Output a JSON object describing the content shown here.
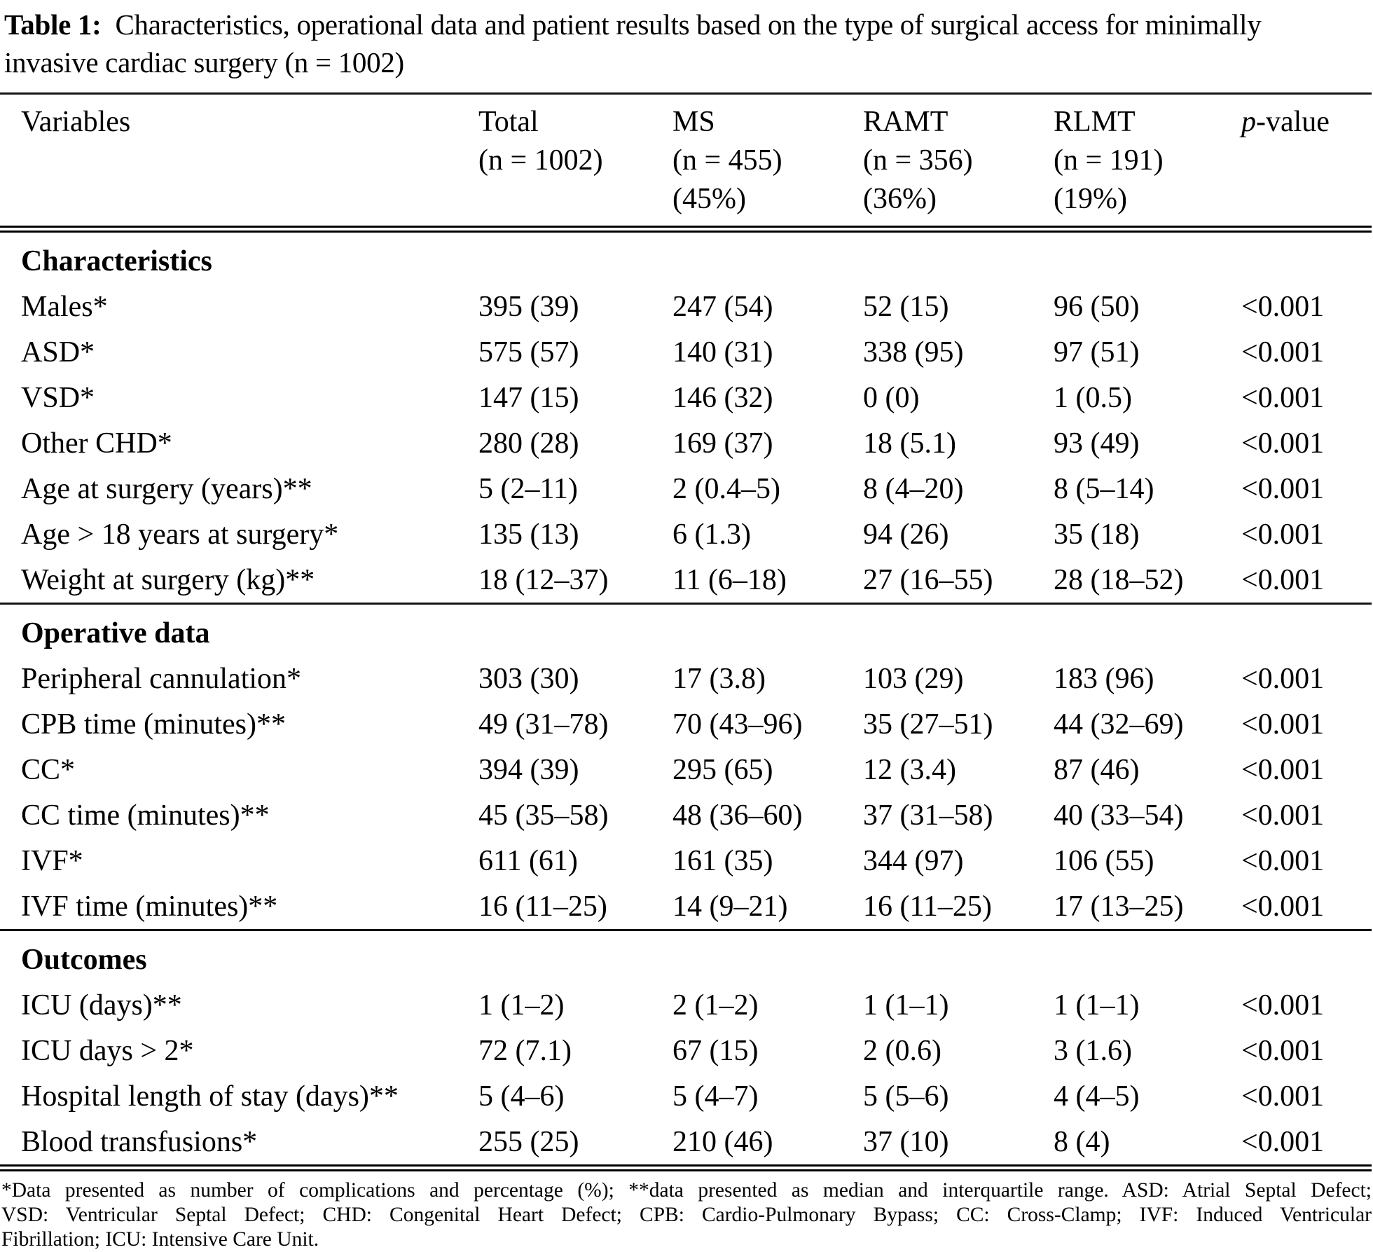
{
  "title": {
    "label": "Table 1:",
    "line1": "Characteristics, operational data and patient results based on the type of surgical access for minimally",
    "line2": "invasive cardiac surgery (n = 1002)"
  },
  "header": {
    "variables": "Variables",
    "groups": [
      {
        "lines": [
          "Total",
          "(n = 1002)",
          ""
        ]
      },
      {
        "lines": [
          "MS",
          "(n = 455)",
          "(45%)"
        ]
      },
      {
        "lines": [
          "RAMT",
          "(n = 356)",
          "(36%)"
        ]
      },
      {
        "lines": [
          "RLMT",
          "(n = 191)",
          "(19%)"
        ]
      }
    ],
    "pvalue": {
      "p": "p",
      "suffix": "-value"
    }
  },
  "sections": [
    {
      "name": "Characteristics",
      "rows": [
        {
          "label": "Males*",
          "values": [
            "395 (39)",
            "247 (54)",
            "52 (15)",
            "96 (50)",
            "<0.001"
          ]
        },
        {
          "label": "ASD*",
          "values": [
            "575 (57)",
            "140 (31)",
            "338 (95)",
            "97 (51)",
            "<0.001"
          ]
        },
        {
          "label": "VSD*",
          "values": [
            "147 (15)",
            "146 (32)",
            "0 (0)",
            "1 (0.5)",
            "<0.001"
          ]
        },
        {
          "label": "Other CHD*",
          "values": [
            "280 (28)",
            "169 (37)",
            "18 (5.1)",
            "93 (49)",
            "<0.001"
          ]
        },
        {
          "label": "Age at surgery (years)**",
          "values": [
            "5 (2–11)",
            "2 (0.4–5)",
            "8 (4–20)",
            "8 (5–14)",
            "<0.001"
          ]
        },
        {
          "label": "Age > 18 years at surgery*",
          "values": [
            "135 (13)",
            "6 (1.3)",
            "94 (26)",
            "35 (18)",
            "<0.001"
          ]
        },
        {
          "label": "Weight at surgery (kg)**",
          "values": [
            "18 (12–37)",
            "11 (6–18)",
            "27 (16–55)",
            "28 (18–52)",
            "<0.001"
          ]
        }
      ]
    },
    {
      "name": "Operative data",
      "rows": [
        {
          "label": "Peripheral cannulation*",
          "values": [
            "303 (30)",
            "17 (3.8)",
            "103 (29)",
            "183 (96)",
            "<0.001"
          ]
        },
        {
          "label": "CPB time (minutes)**",
          "values": [
            "49 (31–78)",
            "70 (43–96)",
            "35 (27–51)",
            "44 (32–69)",
            "<0.001"
          ]
        },
        {
          "label": "CC*",
          "values": [
            "394 (39)",
            "295 (65)",
            "12 (3.4)",
            "87 (46)",
            "<0.001"
          ]
        },
        {
          "label": "CC time (minutes)**",
          "values": [
            "45 (35–58)",
            "48 (36–60)",
            "37 (31–58)",
            "40 (33–54)",
            "<0.001"
          ]
        },
        {
          "label": "IVF*",
          "values": [
            "611 (61)",
            "161 (35)",
            "344 (97)",
            "106 (55)",
            "<0.001"
          ]
        },
        {
          "label": "IVF time (minutes)**",
          "values": [
            "16 (11–25)",
            "14 (9–21)",
            "16 (11–25)",
            "17 (13–25)",
            "<0.001"
          ]
        }
      ]
    },
    {
      "name": "Outcomes",
      "rows": [
        {
          "label": "ICU (days)**",
          "values": [
            "1 (1–2)",
            "2 (1–2)",
            "1 (1–1)",
            "1 (1–1)",
            "<0.001"
          ]
        },
        {
          "label": "ICU days > 2*",
          "values": [
            "72 (7.1)",
            "67 (15)",
            "2 (0.6)",
            "3 (1.6)",
            "<0.001"
          ]
        },
        {
          "label": "Hospital length of stay (days)**",
          "values": [
            "5 (4–6)",
            "5 (4–7)",
            "5 (5–6)",
            "4 (4–5)",
            "<0.001"
          ]
        },
        {
          "label": "Blood transfusions*",
          "values": [
            "255 (25)",
            "210 (46)",
            "37 (10)",
            "8 (4)",
            "<0.001"
          ]
        }
      ]
    }
  ],
  "footnote": {
    "lines": [
      "*Data presented as number of complications and percentage (%); **data presented as median and interquartile range. ASD: Atrial Septal Defect;",
      "VSD: Ventricular Septal Defect; CHD: Congenital Heart Defect; CPB: Cardio-Pulmonary Bypass; CC: Cross-Clamp; IVF: Induced Ventricular",
      "Fibrillation; ICU: Intensive Care Unit."
    ]
  }
}
